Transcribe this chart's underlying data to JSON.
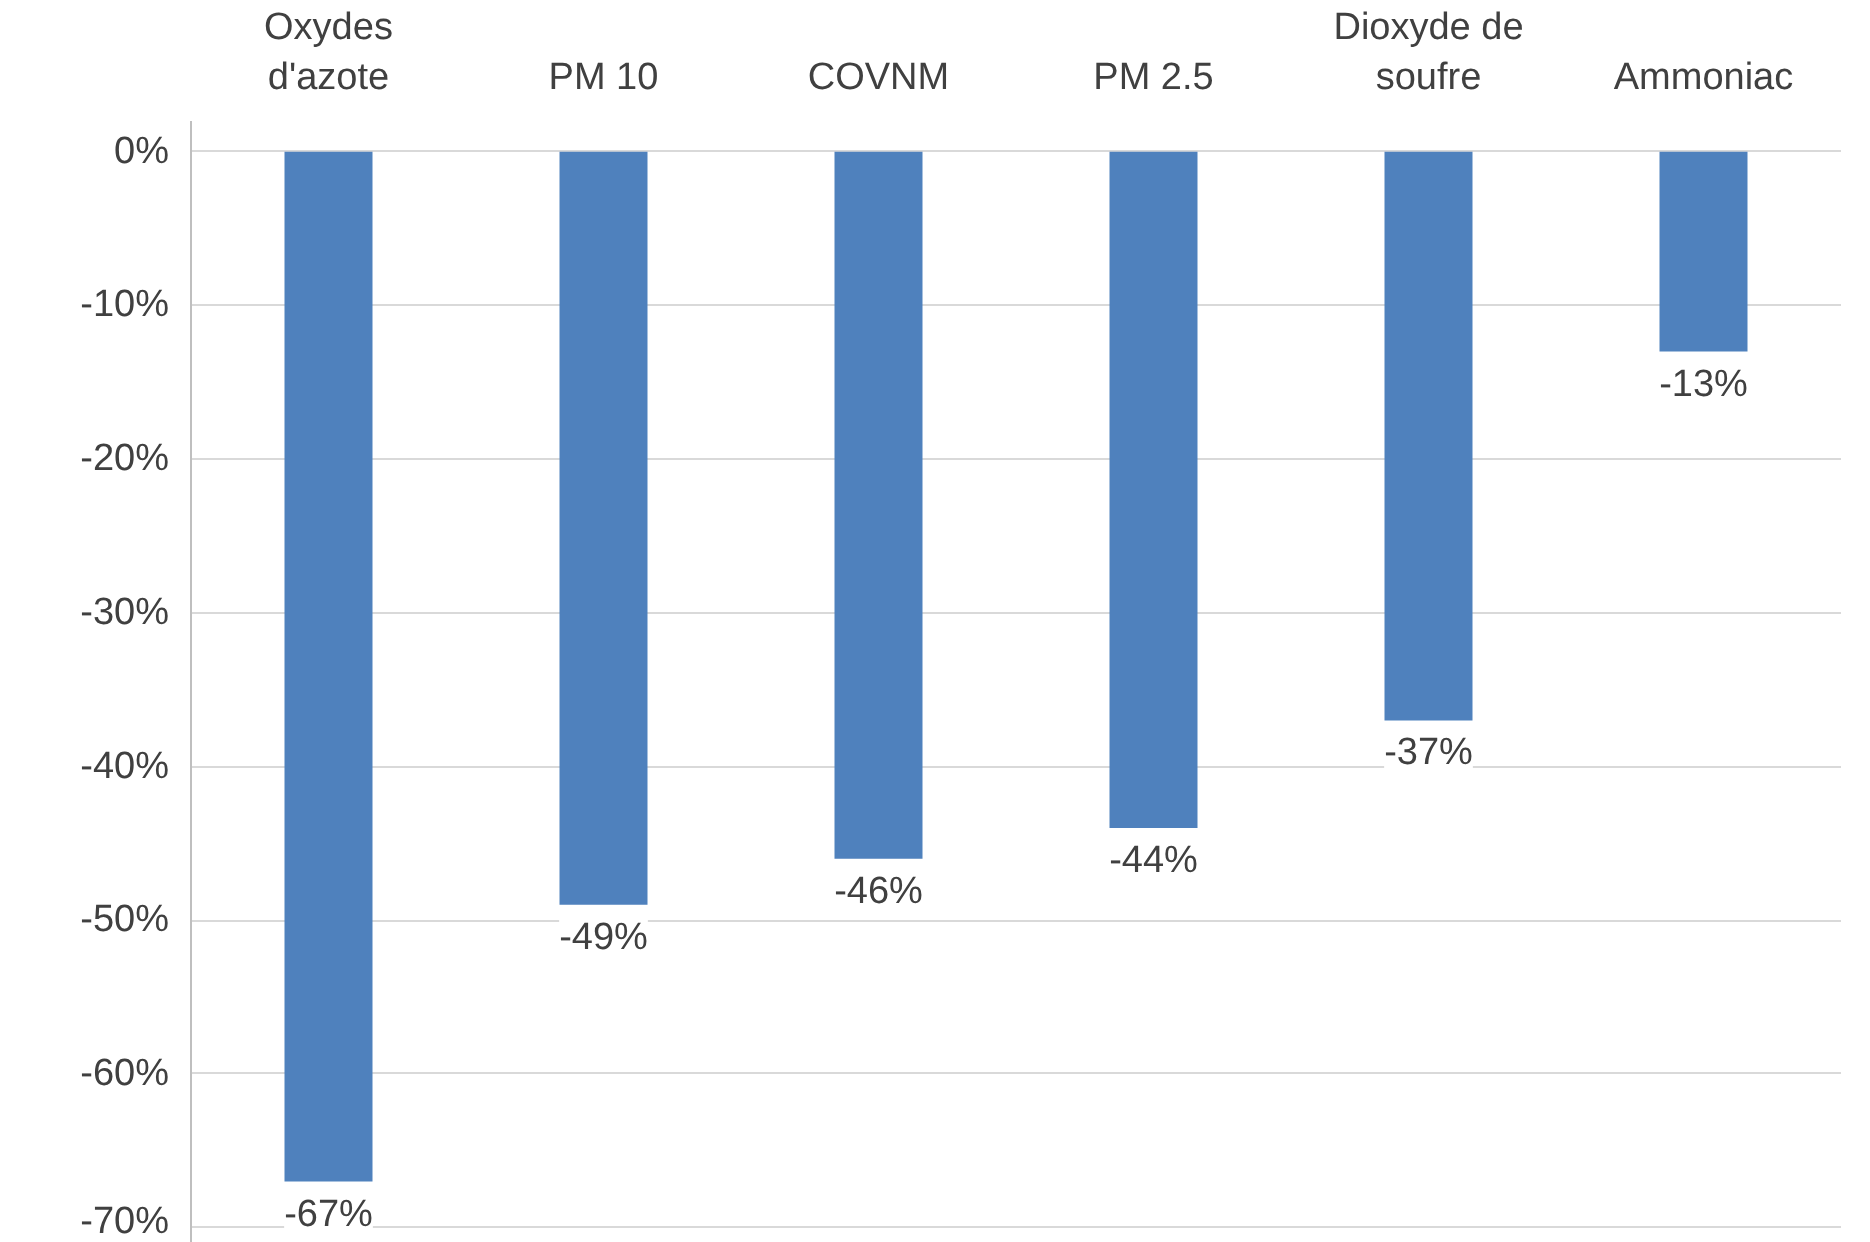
{
  "chart_data": {
    "type": "bar",
    "categories": [
      "Oxydes d'azote",
      "PM 10",
      "COVNM",
      "PM 2.5",
      "Dioxyde de soufre",
      "Ammoniac"
    ],
    "values": [
      -67,
      -49,
      -46,
      -44,
      -37,
      -13
    ],
    "color": "#4f81bd",
    "value_labels": [
      "-67%",
      "-49%",
      "-46%",
      "-44%",
      "-37%",
      "-13%"
    ],
    "ylim": [
      -71,
      2
    ],
    "yticks": [
      {
        "value": 0,
        "label": "0%"
      },
      {
        "value": -10,
        "label": "-10%"
      },
      {
        "value": -20,
        "label": "-20%"
      },
      {
        "value": -30,
        "label": "-30%"
      },
      {
        "value": -40,
        "label": "-40%"
      },
      {
        "value": -50,
        "label": "-50%"
      },
      {
        "value": -60,
        "label": "-60%"
      },
      {
        "value": -70,
        "label": "-70%"
      }
    ],
    "grid": "y"
  }
}
